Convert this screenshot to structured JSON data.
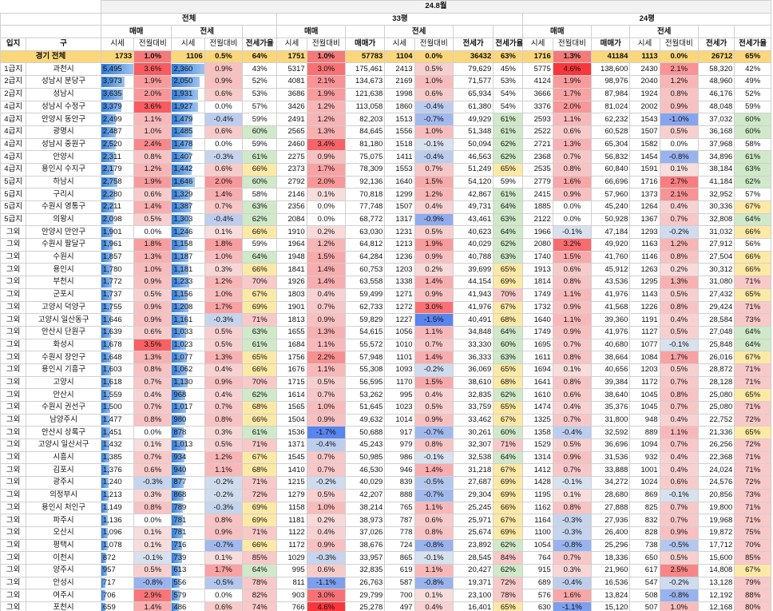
{
  "period": "24.8월",
  "groups": {
    "all": "전체",
    "p33": "33평",
    "p24": "24평"
  },
  "sub": {
    "trade": "매매",
    "jeonse": "전세"
  },
  "cols": {
    "region": "입지",
    "gu": "구",
    "index": "시세",
    "mom": "전월대비",
    "ratio": "전세가율",
    "trade_price": "매매가",
    "jeonse_price": "전세가"
  },
  "total": {
    "region": "",
    "gu": "경기 전체",
    "v": [
      "1733",
      "1.0%",
      "1106",
      "0.5%",
      "64%",
      "1751",
      "1.0%",
      "57783",
      "1104",
      "0.0%",
      "36432",
      "63%",
      "1716",
      "1.3%",
      "41184",
      "1113",
      "0.0%",
      "26712",
      "65%"
    ]
  },
  "rows": [
    [
      "1급지",
      "과천시",
      "5,495",
      "3.6%",
      "2,360",
      "0.9%",
      "43%",
      "5317",
      "3.0%",
      "175,461",
      "2413",
      "0.5%",
      "79,629",
      "45%",
      "5775",
      "4.6%",
      "138,600",
      "2430",
      "2.1%",
      "58,320",
      "42%"
    ],
    [
      "2급지",
      "성남시 분당구",
      "3,973",
      "1.9%",
      "2,050",
      "0.9%",
      "52%",
      "4081",
      "2.1%",
      "134,673",
      "2169",
      "1.0%",
      "71,577",
      "53%",
      "4124",
      "1.9%",
      "98,976",
      "2040",
      "1.2%",
      "48,960",
      "49%"
    ],
    [
      "2급지",
      "성남시",
      "3,635",
      "2.0%",
      "1,931",
      "0.6%",
      "53%",
      "3686",
      "1.9%",
      "121,638",
      "1998",
      "0.6%",
      "65,934",
      "54%",
      "3666",
      "1.7%",
      "87,984",
      "1924",
      "0.8%",
      "46,176",
      "52%"
    ],
    [
      "4급지",
      "성남시 수정구",
      "3,379",
      "3.6%",
      "1,927",
      "0.0%",
      "57%",
      "3426",
      "1.2%",
      "113,058",
      "1860",
      "-0.4%",
      "61,380",
      "54%",
      "3376",
      "2.0%",
      "81,024",
      "2002",
      "0.9%",
      "48,048",
      "59%"
    ],
    [
      "4급지",
      "안양시 동안구",
      "2,499",
      "1.1%",
      "1,479",
      "-0.4%",
      "59%",
      "2491",
      "1.2%",
      "82,203",
      "1513",
      "-0.7%",
      "49,929",
      "61%",
      "2593",
      "1.1%",
      "62,232",
      "1543",
      "-1.0%",
      "37,032",
      "60%"
    ],
    [
      "4급지",
      "광명시",
      "2,487",
      "1.0%",
      "1,485",
      "0.6%",
      "60%",
      "2565",
      "1.3%",
      "84,645",
      "1556",
      "1.0%",
      "51,348",
      "61%",
      "2522",
      "0.6%",
      "60,528",
      "1507",
      "0.5%",
      "36,168",
      "60%"
    ],
    [
      "4급지",
      "성남시 중원구",
      "2,520",
      "2.4%",
      "1,478",
      "0.0%",
      "59%",
      "2460",
      "3.4%",
      "81,180",
      "1518",
      "-0.1%",
      "50,094",
      "62%",
      "2721",
      "1.3%",
      "65,304",
      "1582",
      "0.0%",
      "37,968",
      "58%"
    ],
    [
      "4급지",
      "안양시",
      "2,311",
      "0.8%",
      "1,407",
      "-0.3%",
      "61%",
      "2275",
      "0.9%",
      "75,075",
      "1411",
      "-0.4%",
      "46,563",
      "62%",
      "2368",
      "0.7%",
      "56,832",
      "1454",
      "-0.8%",
      "34,896",
      "61%"
    ],
    [
      "4급지",
      "용인시 수지구",
      "2,179",
      "1.2%",
      "1,442",
      "0.6%",
      "66%",
      "2373",
      "1.7%",
      "78,309",
      "1553",
      "0.7%",
      "51,249",
      "65%",
      "2535",
      "0.8%",
      "60,840",
      "1591",
      "0.1%",
      "38,184",
      "63%"
    ],
    [
      "5급지",
      "하남시",
      "2,758",
      "1.9%",
      "1,646",
      "2.0%",
      "60%",
      "2792",
      "2.0%",
      "92,136",
      "1640",
      "1.5%",
      "54,120",
      "59%",
      "2779",
      "1.6%",
      "66,696",
      "1716",
      "2.7%",
      "41,184",
      "62%"
    ],
    [
      "5급지",
      "구리시",
      "2,280",
      "0.6%",
      "1,329",
      "1.4%",
      "58%",
      "2146",
      "0.1%",
      "70,818",
      "1299",
      "1.2%",
      "42,867",
      "61%",
      "2415",
      "0.9%",
      "57,960",
      "1373",
      "2.1%",
      "32,952",
      "57%"
    ],
    [
      "5급지",
      "수원시 영통구",
      "2,211",
      "1.4%",
      "1,387",
      "0.7%",
      "63%",
      "2356",
      "0.0%",
      "77,748",
      "1507",
      "0.4%",
      "49,731",
      "64%",
      "1885",
      "0.0%",
      "45,240",
      "1264",
      "0.4%",
      "30,336",
      "67%"
    ],
    [
      "5급지",
      "의왕시",
      "2,098",
      "0.5%",
      "1,303",
      "-0.4%",
      "62%",
      "2084",
      "0.0%",
      "68,772",
      "1317",
      "-0.9%",
      "43,461",
      "63%",
      "2122",
      "0.0%",
      "50,928",
      "1367",
      "0.7%",
      "32,808",
      "64%"
    ],
    [
      "그외",
      "안양시 만안구",
      "1,901",
      "0.0%",
      "1,246",
      "0.1%",
      "66%",
      "1910",
      "0.2%",
      "63,030",
      "1231",
      "0.5%",
      "40,623",
      "64%",
      "1966",
      "-0.1%",
      "47,184",
      "1293",
      "-0.2%",
      "31,032",
      "66%"
    ],
    [
      "그외",
      "수원시 팔달구",
      "1,961",
      "1.8%",
      "1,158",
      "1.8%",
      "59%",
      "1964",
      "1.2%",
      "64,812",
      "1213",
      "1.9%",
      "40,029",
      "62%",
      "2080",
      "3.2%",
      "49,920",
      "1163",
      "1.2%",
      "27,912",
      "56%"
    ],
    [
      "그외",
      "수원시",
      "1,857",
      "1.3%",
      "1,187",
      "1.0%",
      "64%",
      "1948",
      "1.5%",
      "64,284",
      "1236",
      "0.9%",
      "40,788",
      "63%",
      "1740",
      "1.5%",
      "41,760",
      "1146",
      "0.8%",
      "27,504",
      "66%"
    ],
    [
      "그외",
      "용인시",
      "1,780",
      "1.0%",
      "1,181",
      "0.3%",
      "66%",
      "1841",
      "1.4%",
      "60,753",
      "1203",
      "0.2%",
      "39,699",
      "65%",
      "1913",
      "0.6%",
      "45,912",
      "1263",
      "0.2%",
      "30,312",
      "66%"
    ],
    [
      "그외",
      "부천시",
      "1,772",
      "0.9%",
      "1,233",
      "1.2%",
      "70%",
      "1926",
      "1.4%",
      "63,558",
      "1338",
      "1.4%",
      "44,154",
      "69%",
      "1814",
      "0.8%",
      "43,536",
      "1295",
      "1.3%",
      "31,080",
      "71%"
    ],
    [
      "그외",
      "군포시",
      "1,737",
      "0.5%",
      "1,156",
      "1.0%",
      "67%",
      "1803",
      "0.4%",
      "59,499",
      "1271",
      "0.9%",
      "41,943",
      "70%",
      "1749",
      "1.1%",
      "41,976",
      "1143",
      "0.5%",
      "27,432",
      "65%"
    ],
    [
      "그외",
      "고양시 덕양구",
      "1,755",
      "0.9%",
      "1,208",
      "1.7%",
      "69%",
      "1901",
      "0.7%",
      "62,733",
      "1272",
      "3.0%",
      "41,976",
      "67%",
      "1732",
      "0.9%",
      "41,568",
      "1226",
      "0.8%",
      "29,424",
      "71%"
    ],
    [
      "그외",
      "고양시 일산동구",
      "1,646",
      "0.9%",
      "1,161",
      "-0.3%",
      "71%",
      "1813",
      "0.9%",
      "59,829",
      "1227",
      "-1.5%",
      "40,491",
      "68%",
      "1640",
      "1.1%",
      "39,360",
      "1191",
      "0.4%",
      "28,584",
      "73%"
    ],
    [
      "그외",
      "안산시 단원구",
      "1,639",
      "0.6%",
      "1,033",
      "0.5%",
      "63%",
      "1655",
      "1.3%",
      "54,615",
      "1056",
      "1.1%",
      "34,848",
      "64%",
      "1749",
      "0.9%",
      "41,976",
      "1127",
      "0.5%",
      "27,048",
      "64%"
    ],
    [
      "그외",
      "화성시",
      "1,678",
      "3.5%",
      "1,023",
      "0.5%",
      "61%",
      "1684",
      "1.1%",
      "55,572",
      "1010",
      "0.7%",
      "33,330",
      "60%",
      "1695",
      "0.7%",
      "40,680",
      "1077",
      "-0.1%",
      "25,848",
      "64%"
    ],
    [
      "그외",
      "수원시 장안구",
      "1,648",
      "1.3%",
      "1,077",
      "1.3%",
      "65%",
      "1756",
      "2.2%",
      "57,948",
      "1101",
      "1.4%",
      "36,333",
      "63%",
      "1611",
      "0.8%",
      "38,664",
      "1084",
      "1.7%",
      "26,016",
      "67%"
    ],
    [
      "그외",
      "용인시 기흥구",
      "1,603",
      "0.8%",
      "1,062",
      "0.4%",
      "66%",
      "1676",
      "1.1%",
      "55,308",
      "1093",
      "-0.2%",
      "36,069",
      "65%",
      "1694",
      "0.1%",
      "40,656",
      "1203",
      "0.5%",
      "28,872",
      "71%"
    ],
    [
      "그외",
      "고양시",
      "1,618",
      "0.7%",
      "1,130",
      "0.9%",
      "70%",
      "1715",
      "0.5%",
      "56,595",
      "1170",
      "1.5%",
      "38,610",
      "68%",
      "1641",
      "0.8%",
      "39,384",
      "1172",
      "0.7%",
      "28,128",
      "71%"
    ],
    [
      "그외",
      "안산시",
      "1,559",
      "0.4%",
      "968",
      "0.4%",
      "62%",
      "1614",
      "0.7%",
      "53,262",
      "995",
      "0.4%",
      "32,835",
      "62%",
      "1610",
      "0.6%",
      "38,640",
      "1045",
      "0.8%",
      "25,080",
      "65%"
    ],
    [
      "그외",
      "수원시 권선구",
      "1,500",
      "0.7%",
      "1,017",
      "0.7%",
      "68%",
      "1565",
      "1.0%",
      "51,645",
      "1023",
      "0.5%",
      "33,759",
      "65%",
      "1474",
      "0.4%",
      "35,376",
      "1045",
      "0.7%",
      "25,080",
      "71%"
    ],
    [
      "그외",
      "남양주시",
      "1,477",
      "0.8%",
      "980",
      "0.8%",
      "66%",
      "1504",
      "0.9%",
      "49,632",
      "1014",
      "0.9%",
      "33,462",
      "67%",
      "1325",
      "0.7%",
      "31,800",
      "948",
      "0.4%",
      "22,752",
      "72%"
    ],
    [
      "그외",
      "안산시 상록구",
      "1,451",
      "0.0%",
      "878",
      "0.3%",
      "61%",
      "1536",
      "-1.7%",
      "50,688",
      "917",
      "-0.7%",
      "30,261",
      "60%",
      "1358",
      "-0.4%",
      "32,592",
      "889",
      "1.1%",
      "21,336",
      "65%"
    ],
    [
      "그외",
      "고양시 일산서구",
      "1,432",
      "0.1%",
      "1,013",
      "0.5%",
      "71%",
      "1371",
      "-0.4%",
      "45,243",
      "979",
      "0.8%",
      "32,307",
      "71%",
      "1529",
      "0.5%",
      "36,696",
      "1094",
      "0.7%",
      "26,256",
      "72%"
    ],
    [
      "그외",
      "시흥시",
      "1,385",
      "0.7%",
      "934",
      "1.2%",
      "67%",
      "1545",
      "0.7%",
      "50,985",
      "986",
      "-0.1%",
      "32,538",
      "64%",
      "1314",
      "0.9%",
      "31,536",
      "932",
      "0.4%",
      "22,368",
      "71%"
    ],
    [
      "그외",
      "김포시",
      "1,376",
      "0.6%",
      "940",
      "1.1%",
      "68%",
      "1410",
      "0.7%",
      "46,530",
      "946",
      "1.4%",
      "31,218",
      "67%",
      "1412",
      "0.7%",
      "33,888",
      "1001",
      "0.4%",
      "24,024",
      "71%"
    ],
    [
      "그외",
      "광주시",
      "1,240",
      "-0.3%",
      "877",
      "-0.2%",
      "71%",
      "1215",
      "-0.2%",
      "40,029",
      "839",
      "-0.5%",
      "27,687",
      "69%",
      "1428",
      "-0.1%",
      "34,272",
      "1024",
      "0.6%",
      "24,576",
      "72%"
    ],
    [
      "그외",
      "의정부시",
      "1,213",
      "0.3%",
      "868",
      "-0.2%",
      "72%",
      "1279",
      "0.5%",
      "42,207",
      "888",
      "-0.7%",
      "29,304",
      "69%",
      "1195",
      "0.1%",
      "28,680",
      "869",
      "-0.1%",
      "20,856",
      "73%"
    ],
    [
      "그외",
      "용인시 처인구",
      "1,149",
      "0.8%",
      "789",
      "-0.3%",
      "69%",
      "1158",
      "1.0%",
      "38,214",
      "765",
      "1.1%",
      "25,245",
      "66%",
      "1162",
      "0.8%",
      "27,888",
      "825",
      "0.7%",
      "19,800",
      "71%"
    ],
    [
      "그외",
      "파주시",
      "1,136",
      "0.0%",
      "781",
      "0.8%",
      "69%",
      "1181",
      "0.2%",
      "38,973",
      "787",
      "0.6%",
      "25,971",
      "67%",
      "1164",
      "-0.3%",
      "27,936",
      "832",
      "0.7%",
      "19,968",
      "71%"
    ],
    [
      "그외",
      "오산시",
      "1,096",
      "0.1%",
      "781",
      "0.9%",
      "71%",
      "1122",
      "0.4%",
      "37,026",
      "778",
      "0.8%",
      "25,674",
      "69%",
      "1100",
      "-0.3%",
      "26,400",
      "828",
      "0.9%",
      "19,872",
      "75%"
    ],
    [
      "그외",
      "평택시",
      "1,078",
      "0.1%",
      "716",
      "-0.7%",
      "66%",
      "1172",
      "0.9%",
      "38,676",
      "724",
      "-0.8%",
      "23,892",
      "62%",
      "1054",
      "-0.8%",
      "25,296",
      "738",
      "-0.5%",
      "17,712",
      "70%"
    ],
    [
      "그외",
      "이천시",
      "872",
      "-0.1%",
      "739",
      "0.1%",
      "85%",
      "1029",
      "-0.3%",
      "33,957",
      "865",
      "-0.1%",
      "28,545",
      "84%",
      "764",
      "0.7%",
      "18,336",
      "650",
      "0.5%",
      "15,600",
      "85%"
    ],
    [
      "그외",
      "양주시",
      "957",
      "0.5%",
      "613",
      "1.7%",
      "64%",
      "995",
      "0.6%",
      "32,835",
      "619",
      "1.1%",
      "20,427",
      "62%",
      "915",
      "0.3%",
      "21,960",
      "617",
      "2.5%",
      "14,808",
      "67%"
    ],
    [
      "그외",
      "안성시",
      "717",
      "-0.8%",
      "556",
      "-0.5%",
      "78%",
      "811",
      "-1.1%",
      "26,763",
      "587",
      "-0.8%",
      "19,371",
      "72%",
      "689",
      "-0.4%",
      "16,536",
      "547",
      "-0.2%",
      "13,128",
      "79%"
    ],
    [
      "그외",
      "여주시",
      "706",
      "2.9%",
      "579",
      "0.0%",
      "82%",
      "903",
      "3.0%",
      "29,799",
      "700",
      "0.1%",
      "23,100",
      "78%",
      "576",
      "1.6%",
      "13,824",
      "508",
      "-0.8%",
      "12,192",
      "88%"
    ],
    [
      "그외",
      "포천시",
      "659",
      "1.4%",
      "486",
      "0.6%",
      "74%",
      "766",
      "4.6%",
      "25,278",
      "497",
      "0.4%",
      "16,401",
      "65%",
      "630",
      "-1.1%",
      "15,120",
      "507",
      "1.0%",
      "12,168",
      "80%"
    ],
    [
      "그외",
      "동두천시",
      "641",
      "0.0%",
      "496",
      "1.0%",
      "77%",
      "639",
      "-7.9%",
      "21,087",
      "524",
      "2.1%",
      "17,292",
      "82%",
      "614",
      "0.2%",
      "14,736",
      "492",
      "0.0%",
      "11,808",
      "80%"
    ]
  ]
}
